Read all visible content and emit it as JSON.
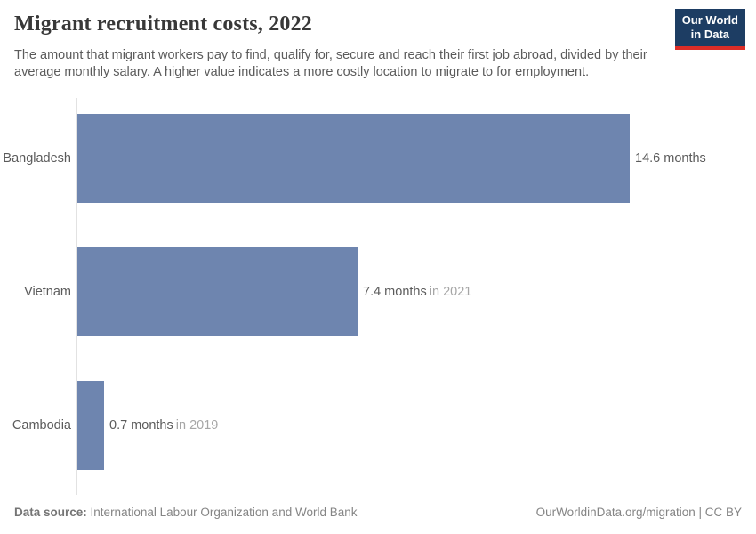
{
  "header": {
    "title": "Migrant recruitment costs, 2022",
    "logo_line1": "Our World",
    "logo_line2": "in Data",
    "logo_bg": "#1d3d63",
    "logo_accent": "#dc2d27"
  },
  "subtitle": "The amount that migrant workers pay to find, qualify for, secure and reach their first job abroad, divided by their average monthly salary. A higher value indicates a more costly location to migrate to for employment.",
  "chart_data": {
    "type": "bar",
    "orientation": "horizontal",
    "title": "Migrant recruitment costs, 2022",
    "unit": "months",
    "categories": [
      "Bangladesh",
      "Vietnam",
      "Cambodia"
    ],
    "values": [
      14.6,
      7.4,
      0.7
    ],
    "value_labels": [
      "14.6 months",
      "7.4 months",
      "0.7 months"
    ],
    "year_notes": [
      "",
      "in 2021",
      "in 2019"
    ],
    "xlim": [
      0,
      14.6
    ],
    "bar_color": "#6e85af",
    "grid": false,
    "legend": "none"
  },
  "footer": {
    "source_label": "Data source:",
    "source_text": "International Labour Organization and World Bank",
    "credit": "OurWorldinData.org/migration | CC BY"
  }
}
